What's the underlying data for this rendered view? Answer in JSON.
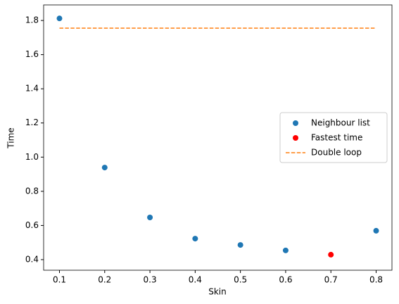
{
  "chart_data": {
    "type": "scatter",
    "xlabel": "Skin",
    "ylabel": "Time",
    "xlim": [
      0.065,
      0.835
    ],
    "ylim": [
      0.338,
      1.891
    ],
    "xticks": [
      0.1,
      0.2,
      0.3,
      0.4,
      0.5,
      0.6,
      0.7,
      0.8
    ],
    "yticks": [
      0.4,
      0.6,
      0.8,
      1.0,
      1.2,
      1.4,
      1.6,
      1.8
    ],
    "legend": "center right",
    "series": [
      {
        "name": "Neighbour list",
        "type": "scatter",
        "color": "#1f77b4",
        "x": [
          0.1,
          0.2,
          0.3,
          0.4,
          0.5,
          0.6,
          0.8
        ],
        "values": [
          1.812,
          0.939,
          0.647,
          0.523,
          0.486,
          0.454,
          0.569
        ]
      },
      {
        "name": "Fastest time",
        "type": "scatter",
        "color": "#ff0000",
        "x": [
          0.7
        ],
        "values": [
          0.429
        ]
      },
      {
        "name": "Double loop",
        "type": "line",
        "dash": true,
        "color": "#ff7f0e",
        "x": [
          0.1,
          0.8
        ],
        "values": [
          1.755,
          1.755
        ]
      }
    ]
  }
}
